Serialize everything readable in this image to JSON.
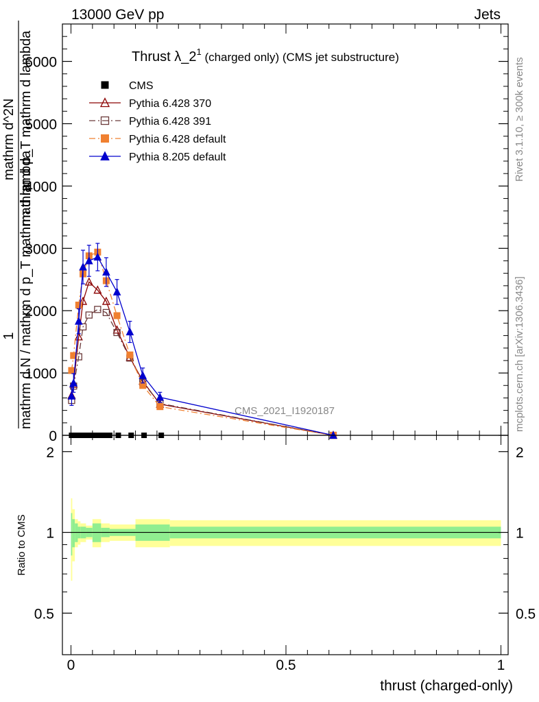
{
  "header": {
    "energy_label": "13000 GeV pp",
    "category_label": "Jets"
  },
  "side_text": {
    "rivet": "Rivet 3.1.10, ≥ 300k events",
    "mcplots": "mcplots.cern.ch [arXiv:1306.3436]"
  },
  "chart_data": [
    {
      "type": "line",
      "title_main": "Thrust λ_2",
      "title_sup": "1",
      "title_rest": " (charged only) (CMS jet substructure)",
      "ylabel_top": "1",
      "ylabel_bottom": "mathrm d N / mathrm d p_T mathrm d lambda",
      "ylabel_right_top": "mathrm d^2N",
      "ylabel_right_bottom": "mathrm d p_T mathrm d lambda",
      "watermark": "CMS_2021_I1920187",
      "xlim": [
        0,
        1
      ],
      "ylim": [
        0,
        6600
      ],
      "y_ticks": [
        0,
        1000,
        2000,
        3000,
        4000,
        5000,
        6000
      ],
      "y_tick_labels": [
        "0",
        "1000",
        "2000",
        "3000",
        "4000",
        "5000",
        "6000"
      ],
      "legend_position": "top-left",
      "series": [
        {
          "name": "CMS",
          "color": "#000000",
          "marker": "square-filled",
          "line": "none",
          "x": [
            0.0015,
            0.005,
            0.01,
            0.015,
            0.02,
            0.025,
            0.03,
            0.04,
            0.05,
            0.06,
            0.07,
            0.08,
            0.09,
            0.11,
            0.14,
            0.17,
            0.21
          ],
          "y": [
            0,
            0,
            0,
            0,
            0,
            0,
            0,
            0,
            0,
            0,
            0,
            0,
            0,
            0,
            0,
            0,
            0
          ]
        },
        {
          "name": "Pythia 6.428 370",
          "color": "#8b0000",
          "marker": "triangle-open",
          "line": "solid",
          "x": [
            0.0015,
            0.006,
            0.018,
            0.028,
            0.042,
            0.062,
            0.082,
            0.107,
            0.137,
            0.167,
            0.207,
            0.61
          ],
          "y": [
            640,
            820,
            1580,
            2150,
            2460,
            2330,
            2150,
            1690,
            1250,
            870,
            500,
            0
          ]
        },
        {
          "name": "Pythia 6.428 391",
          "color": "#6b3a3a",
          "marker": "square-open",
          "line": "dashdot",
          "x": [
            0.0015,
            0.006,
            0.018,
            0.028,
            0.042,
            0.062,
            0.082,
            0.107,
            0.137,
            0.167,
            0.207,
            0.61
          ],
          "y": [
            560,
            790,
            1260,
            1740,
            1930,
            2020,
            1970,
            1650,
            1240,
            850,
            510,
            0
          ]
        },
        {
          "name": "Pythia 6.428 default",
          "color": "#f08030",
          "marker": "square-filled",
          "line": "dashdot",
          "x": [
            0.0015,
            0.006,
            0.018,
            0.028,
            0.042,
            0.062,
            0.082,
            0.107,
            0.137,
            0.167,
            0.207,
            0.61
          ],
          "y": [
            1040,
            1280,
            2090,
            2590,
            2880,
            2940,
            2480,
            1920,
            1290,
            800,
            460,
            0
          ]
        },
        {
          "name": "Pythia 8.205 default",
          "color": "#0000cd",
          "marker": "triangle-filled",
          "line": "solid",
          "x": [
            0.0015,
            0.006,
            0.018,
            0.028,
            0.042,
            0.062,
            0.082,
            0.107,
            0.137,
            0.167,
            0.207,
            0.61
          ],
          "y": [
            630,
            840,
            1830,
            2700,
            2800,
            2860,
            2620,
            2300,
            1660,
            960,
            610,
            0
          ],
          "err": [
            150,
            150,
            200,
            270,
            250,
            220,
            230,
            200,
            170,
            120,
            80,
            0
          ]
        }
      ]
    },
    {
      "type": "area",
      "ylabel": "Ratio to CMS",
      "xlabel": "thrust (charged-only)",
      "xlim": [
        0,
        1
      ],
      "x_ticks": [
        0,
        0.5,
        1
      ],
      "x_tick_labels": [
        "0",
        "0.5",
        "1"
      ],
      "y_ticks": [
        0.5,
        1,
        2
      ],
      "y_tick_labels": [
        "0.5",
        "1",
        "2"
      ],
      "ylim": [
        0.35,
        2.3
      ],
      "log_y": true,
      "reference_line": 1,
      "bands": {
        "edges": [
          0,
          0.003,
          0.009,
          0.016,
          0.022,
          0.035,
          0.05,
          0.07,
          0.09,
          0.15,
          0.23,
          1.0
        ],
        "inner_color": "#90ee90",
        "outer_color": "#ffff99",
        "inner_half": [
          0.18,
          0.12,
          0.08,
          0.05,
          0.05,
          0.04,
          0.08,
          0.04,
          0.03,
          0.07,
          0.05
        ],
        "outer_half": [
          0.34,
          0.22,
          0.12,
          0.1,
          0.08,
          0.06,
          0.12,
          0.08,
          0.07,
          0.12,
          0.11
        ]
      }
    }
  ]
}
